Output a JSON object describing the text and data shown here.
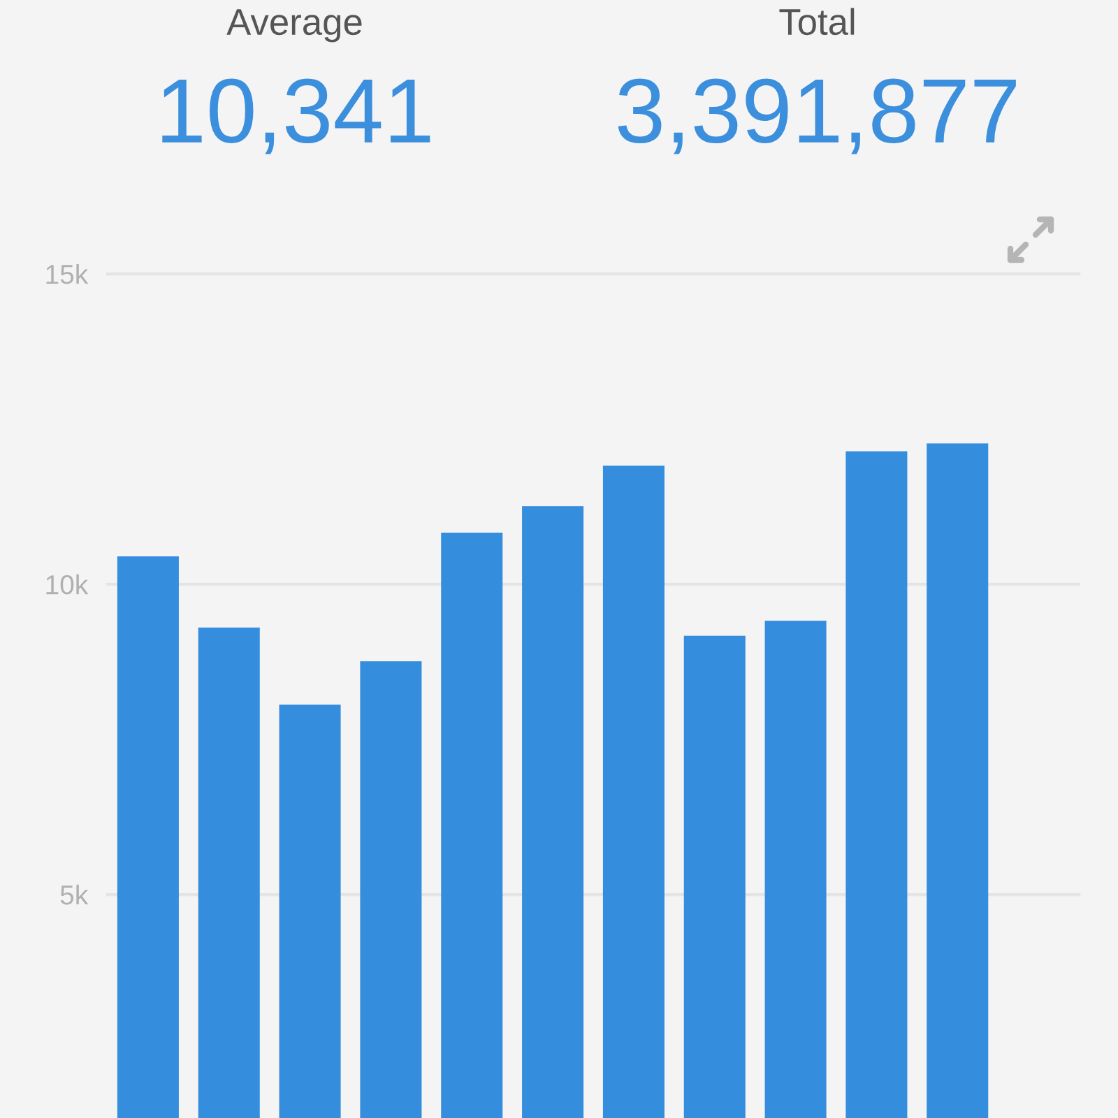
{
  "chart_data": {
    "type": "bar",
    "categories": [
      null,
      null,
      null,
      null,
      null,
      null,
      null,
      null,
      null,
      null,
      null,
      null
    ],
    "values": [
      10450,
      9300,
      8060,
      8760,
      10830,
      11260,
      11910,
      9170,
      9410,
      12140,
      12270,
      null
    ],
    "color": "#348ddd",
    "ylim": [
      1400,
      15000
    ],
    "yticks": [
      {
        "value": 5000,
        "label": "5k"
      },
      {
        "value": 10000,
        "label": "10k"
      },
      {
        "value": 15000,
        "label": "15k"
      }
    ],
    "grid": "y",
    "tick_labels": "y",
    "annotations": [
      "Average",
      "10,341",
      "Total",
      "3,391,877"
    ]
  }
}
